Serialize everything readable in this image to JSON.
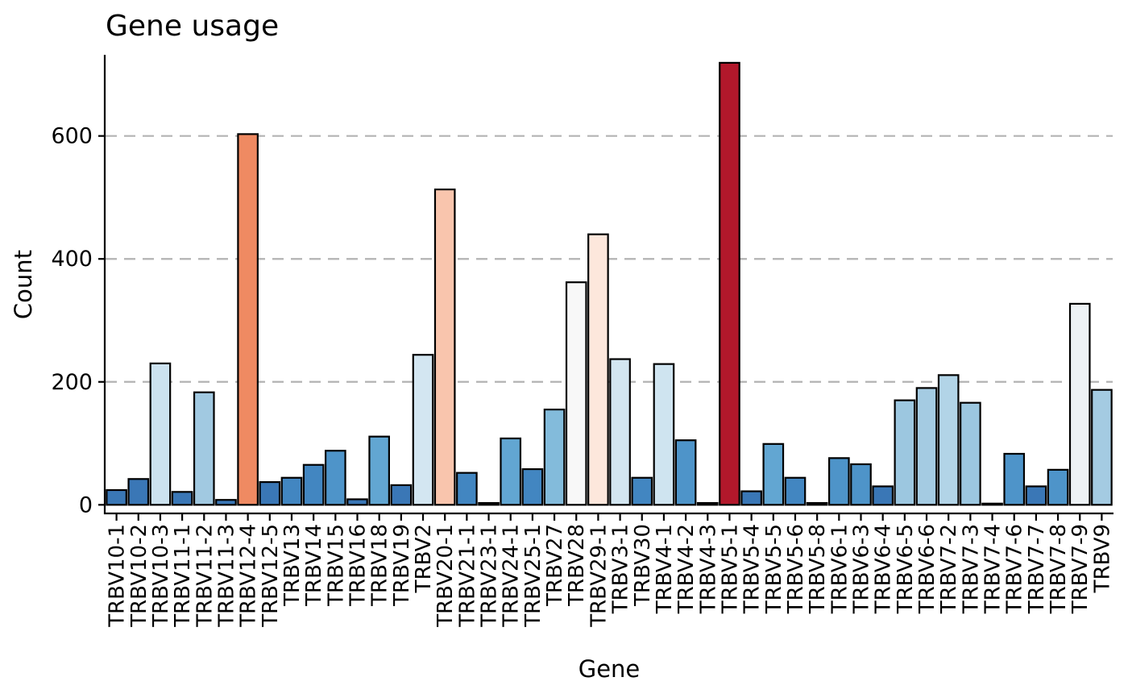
{
  "chart_data": {
    "type": "bar",
    "title": "Gene usage",
    "xlabel": "Gene",
    "ylabel": "Count",
    "ylim": [
      -14,
      732
    ],
    "yticks": [
      0,
      200,
      400,
      600
    ],
    "grid": "horizontal-dashed",
    "legend": "none",
    "categories": [
      "TRBV10-1",
      "TRBV10-2",
      "TRBV10-3",
      "TRBV11-1",
      "TRBV11-2",
      "TRBV11-3",
      "TRBV12-4",
      "TRBV12-5",
      "TRBV13",
      "TRBV14",
      "TRBV15",
      "TRBV16",
      "TRBV18",
      "TRBV19",
      "TRBV2",
      "TRBV20-1",
      "TRBV21-1",
      "TRBV23-1",
      "TRBV24-1",
      "TRBV25-1",
      "TRBV27",
      "TRBV28",
      "TRBV29-1",
      "TRBV3-1",
      "TRBV30",
      "TRBV4-1",
      "TRBV4-2",
      "TRBV4-3",
      "TRBV5-1",
      "TRBV5-4",
      "TRBV5-5",
      "TRBV5-6",
      "TRBV5-8",
      "TRBV6-1",
      "TRBV6-3",
      "TRBV6-4",
      "TRBV6-5",
      "TRBV6-6",
      "TRBV7-2",
      "TRBV7-3",
      "TRBV7-4",
      "TRBV7-6",
      "TRBV7-7",
      "TRBV7-8",
      "TRBV7-9",
      "TRBV9"
    ],
    "values": [
      24,
      42,
      230,
      21,
      183,
      8,
      603,
      37,
      44,
      65,
      88,
      9,
      111,
      32,
      244,
      513,
      52,
      3,
      108,
      58,
      155,
      362,
      440,
      237,
      44,
      229,
      105,
      3,
      719,
      22,
      99,
      44,
      3,
      76,
      66,
      30,
      170,
      190,
      211,
      166,
      2,
      83,
      30,
      57,
      327,
      187
    ],
    "colors": [
      "#3a77b6",
      "#3a77b6",
      "#cce2ef",
      "#3a77b6",
      "#a1c9e1",
      "#3a77b6",
      "#ef8a62",
      "#3a77b6",
      "#4286c1",
      "#4286c1",
      "#4e94c9",
      "#3a77b6",
      "#62a6d2",
      "#3a77b6",
      "#d3e6f1",
      "#f9c5ad",
      "#4286c1",
      "#3a77b6",
      "#62a6d2",
      "#4286c1",
      "#83bbdb",
      "#f8f8f8",
      "#fde7dc",
      "#d3e6f1",
      "#4286c1",
      "#cfe4f0",
      "#4e94c9",
      "#3a77b6",
      "#b2182b",
      "#3a77b6",
      "#62a6d2",
      "#4286c1",
      "#3a77b6",
      "#4e94c9",
      "#4e94c9",
      "#3a77b6",
      "#9cc7e0",
      "#a4cbe2",
      "#b2d4e7",
      "#9cc7e0",
      "#3a77b6",
      "#4e94c9",
      "#3a77b6",
      "#4e94c9",
      "#edf2f5",
      "#a4cbe2"
    ]
  }
}
